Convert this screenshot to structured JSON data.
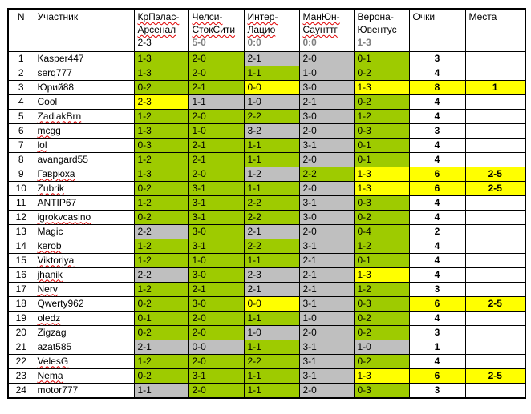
{
  "colors": {
    "correct_outcome_green": "#9ecb00",
    "exact_score_yellow": "#ffff00",
    "wrong_gray": "#bfbfbf",
    "header_result_gray": "#7f7f7f",
    "spellcheck_red": "#e00000"
  },
  "header": {
    "n": "N",
    "participant": "Участник",
    "points": "Очки",
    "places": "Места",
    "matches": [
      {
        "line1": "КрПэлас-",
        "line2": "Арсенал",
        "result": "2-3",
        "misspelled": true,
        "result_emphasis": "plain-black"
      },
      {
        "line1": "Челси-",
        "line2": "СтокСити",
        "result": "5-0",
        "misspelled": true,
        "result_emphasis": "bold-gray"
      },
      {
        "line1": "Интер-",
        "line2": "Лацио",
        "result": "0:0",
        "misspelled": true,
        "result_emphasis": "bold-gray"
      },
      {
        "line1": "МанЮн-",
        "line2": "Саунттг",
        "result": "0:0",
        "misspelled": true,
        "result_emphasis": "bold-gray"
      },
      {
        "line1": "Верона-",
        "line2": "Ювентус",
        "result": "1-3",
        "misspelled": false,
        "result_emphasis": "bold-gray"
      }
    ]
  },
  "rows": [
    {
      "n": "1",
      "name": "Kasper447",
      "name_misspelled": false,
      "predictions": [
        [
          "1-3",
          "g"
        ],
        [
          "2-0",
          "g"
        ],
        [
          "2-1",
          "x"
        ],
        [
          "2-0",
          "x"
        ],
        [
          "0-1",
          "g"
        ]
      ],
      "points": "3",
      "place": "",
      "highlight": false
    },
    {
      "n": "2",
      "name": "serq777",
      "name_misspelled": false,
      "predictions": [
        [
          "1-3",
          "g"
        ],
        [
          "2-0",
          "g"
        ],
        [
          "1-1",
          "g"
        ],
        [
          "1-0",
          "x"
        ],
        [
          "0-2",
          "g"
        ]
      ],
      "points": "4",
      "place": "",
      "highlight": false
    },
    {
      "n": "3",
      "name": "Юрий88",
      "name_misspelled": false,
      "predictions": [
        [
          "0-2",
          "g"
        ],
        [
          "2-1",
          "g"
        ],
        [
          "0-0",
          "y"
        ],
        [
          "3-0",
          "x"
        ],
        [
          "1-3",
          "y"
        ]
      ],
      "points": "8",
      "place": "1",
      "highlight": true
    },
    {
      "n": "4",
      "name": "Cool",
      "name_misspelled": false,
      "predictions": [
        [
          "2-3",
          "y"
        ],
        [
          "1-1",
          "x"
        ],
        [
          "1-0",
          "x"
        ],
        [
          "2-1",
          "x"
        ],
        [
          "0-2",
          "g"
        ]
      ],
      "points": "4",
      "place": "",
      "highlight": false
    },
    {
      "n": "5",
      "name": "ZadiakBrn",
      "name_misspelled": true,
      "predictions": [
        [
          "1-2",
          "g"
        ],
        [
          "2-0",
          "g"
        ],
        [
          "2-2",
          "g"
        ],
        [
          "3-0",
          "x"
        ],
        [
          "1-2",
          "g"
        ]
      ],
      "points": "4",
      "place": "",
      "highlight": false
    },
    {
      "n": "6",
      "name": "mcgg",
      "name_misspelled": true,
      "predictions": [
        [
          "1-3",
          "g"
        ],
        [
          "1-0",
          "g"
        ],
        [
          "3-2",
          "x"
        ],
        [
          "2-0",
          "x"
        ],
        [
          "0-3",
          "g"
        ]
      ],
      "points": "3",
      "place": "",
      "highlight": false
    },
    {
      "n": "7",
      "name": "lol",
      "name_misspelled": true,
      "predictions": [
        [
          "0-3",
          "g"
        ],
        [
          "2-1",
          "g"
        ],
        [
          "1-1",
          "g"
        ],
        [
          "3-1",
          "x"
        ],
        [
          "0-1",
          "g"
        ]
      ],
      "points": "4",
      "place": "",
      "highlight": false
    },
    {
      "n": "8",
      "name": "avangard55",
      "name_misspelled": false,
      "predictions": [
        [
          "1-2",
          "g"
        ],
        [
          "2-1",
          "g"
        ],
        [
          "1-1",
          "g"
        ],
        [
          "2-0",
          "x"
        ],
        [
          "0-1",
          "g"
        ]
      ],
      "points": "4",
      "place": "",
      "highlight": false
    },
    {
      "n": "9",
      "name": "Гаврюха",
      "name_misspelled": true,
      "predictions": [
        [
          "1-3",
          "g"
        ],
        [
          "2-0",
          "g"
        ],
        [
          "1-2",
          "x"
        ],
        [
          "2-2",
          "g"
        ],
        [
          "1-3",
          "y"
        ]
      ],
      "points": "6",
      "place": "2-5",
      "highlight": true
    },
    {
      "n": "10",
      "name": "Zubrik",
      "name_misspelled": true,
      "predictions": [
        [
          "0-2",
          "g"
        ],
        [
          "3-1",
          "g"
        ],
        [
          "1-1",
          "g"
        ],
        [
          "2-0",
          "x"
        ],
        [
          "1-3",
          "y"
        ]
      ],
      "points": "6",
      "place": "2-5",
      "highlight": true
    },
    {
      "n": "11",
      "name": "ANTIP67",
      "name_misspelled": false,
      "predictions": [
        [
          "1-2",
          "g"
        ],
        [
          "3-1",
          "g"
        ],
        [
          "2-2",
          "g"
        ],
        [
          "3-1",
          "x"
        ],
        [
          "0-3",
          "g"
        ]
      ],
      "points": "4",
      "place": "",
      "highlight": false
    },
    {
      "n": "12",
      "name": "igrokvcasino",
      "name_misspelled": true,
      "predictions": [
        [
          "0-2",
          "g"
        ],
        [
          "3-1",
          "g"
        ],
        [
          "2-2",
          "g"
        ],
        [
          "3-0",
          "x"
        ],
        [
          "0-2",
          "g"
        ]
      ],
      "points": "4",
      "place": "",
      "highlight": false
    },
    {
      "n": "13",
      "name": "Magic",
      "name_misspelled": false,
      "predictions": [
        [
          "2-2",
          "x"
        ],
        [
          "3-0",
          "g"
        ],
        [
          "2-1",
          "x"
        ],
        [
          "2-0",
          "x"
        ],
        [
          "0-4",
          "g"
        ]
      ],
      "points": "2",
      "place": "",
      "highlight": false
    },
    {
      "n": "14",
      "name": "kerob",
      "name_misspelled": true,
      "predictions": [
        [
          "1-2",
          "g"
        ],
        [
          "3-1",
          "g"
        ],
        [
          "2-2",
          "g"
        ],
        [
          "3-1",
          "x"
        ],
        [
          "1-2",
          "g"
        ]
      ],
      "points": "4",
      "place": "",
      "highlight": false
    },
    {
      "n": "15",
      "name": "Viktoriya",
      "name_misspelled": true,
      "predictions": [
        [
          "1-2",
          "g"
        ],
        [
          "1-0",
          "g"
        ],
        [
          "1-1",
          "g"
        ],
        [
          "2-1",
          "x"
        ],
        [
          "0-1",
          "g"
        ]
      ],
      "points": "4",
      "place": "",
      "highlight": false
    },
    {
      "n": "16",
      "name": "jhanik",
      "name_misspelled": true,
      "predictions": [
        [
          "2-2",
          "x"
        ],
        [
          "3-0",
          "g"
        ],
        [
          "2-3",
          "x"
        ],
        [
          "2-1",
          "x"
        ],
        [
          "1-3",
          "y"
        ]
      ],
      "points": "4",
      "place": "",
      "highlight": false
    },
    {
      "n": "17",
      "name": "Nerv",
      "name_misspelled": true,
      "predictions": [
        [
          "1-2",
          "g"
        ],
        [
          "2-1",
          "g"
        ],
        [
          "2-1",
          "x"
        ],
        [
          "2-1",
          "x"
        ],
        [
          "1-2",
          "g"
        ]
      ],
      "points": "3",
      "place": "",
      "highlight": false
    },
    {
      "n": "18",
      "name": "Qwerty962",
      "name_misspelled": false,
      "predictions": [
        [
          "0-2",
          "g"
        ],
        [
          "3-0",
          "g"
        ],
        [
          "0-0",
          "y"
        ],
        [
          "3-1",
          "x"
        ],
        [
          "0-3",
          "g"
        ]
      ],
      "points": "6",
      "place": "2-5",
      "highlight": true
    },
    {
      "n": "19",
      "name": "oledz",
      "name_misspelled": true,
      "predictions": [
        [
          "0-1",
          "g"
        ],
        [
          "2-0",
          "g"
        ],
        [
          "1-1",
          "g"
        ],
        [
          "1-0",
          "x"
        ],
        [
          "0-2",
          "g"
        ]
      ],
      "points": "4",
      "place": "",
      "highlight": false
    },
    {
      "n": "20",
      "name": "Zigzag",
      "name_misspelled": false,
      "predictions": [
        [
          "0-2",
          "g"
        ],
        [
          "2-0",
          "g"
        ],
        [
          "1-0",
          "x"
        ],
        [
          "2-0",
          "x"
        ],
        [
          "0-2",
          "g"
        ]
      ],
      "points": "3",
      "place": "",
      "highlight": false
    },
    {
      "n": "21",
      "name": "azat585",
      "name_misspelled": false,
      "predictions": [
        [
          "2-1",
          "x"
        ],
        [
          "0-0",
          "x"
        ],
        [
          "1-1",
          "g"
        ],
        [
          "3-1",
          "x"
        ],
        [
          "1-0",
          "x"
        ]
      ],
      "points": "1",
      "place": "",
      "highlight": false
    },
    {
      "n": "22",
      "name": "VelesG",
      "name_misspelled": true,
      "predictions": [
        [
          "1-2",
          "g"
        ],
        [
          "2-0",
          "g"
        ],
        [
          "2-2",
          "g"
        ],
        [
          "3-1",
          "x"
        ],
        [
          "0-2",
          "g"
        ]
      ],
      "points": "4",
      "place": "",
      "highlight": false
    },
    {
      "n": "23",
      "name": "Nema",
      "name_misspelled": true,
      "predictions": [
        [
          "0-2",
          "g"
        ],
        [
          "3-1",
          "g"
        ],
        [
          "1-1",
          "g"
        ],
        [
          "3-1",
          "x"
        ],
        [
          "1-3",
          "y"
        ]
      ],
      "points": "6",
      "place": "2-5",
      "highlight": true
    },
    {
      "n": "24",
      "name": "motor777",
      "name_misspelled": false,
      "predictions": [
        [
          "1-1",
          "x"
        ],
        [
          "2-0",
          "g"
        ],
        [
          "1-1",
          "g"
        ],
        [
          "2-0",
          "x"
        ],
        [
          "0-3",
          "g"
        ]
      ],
      "points": "3",
      "place": "",
      "highlight": false
    }
  ]
}
